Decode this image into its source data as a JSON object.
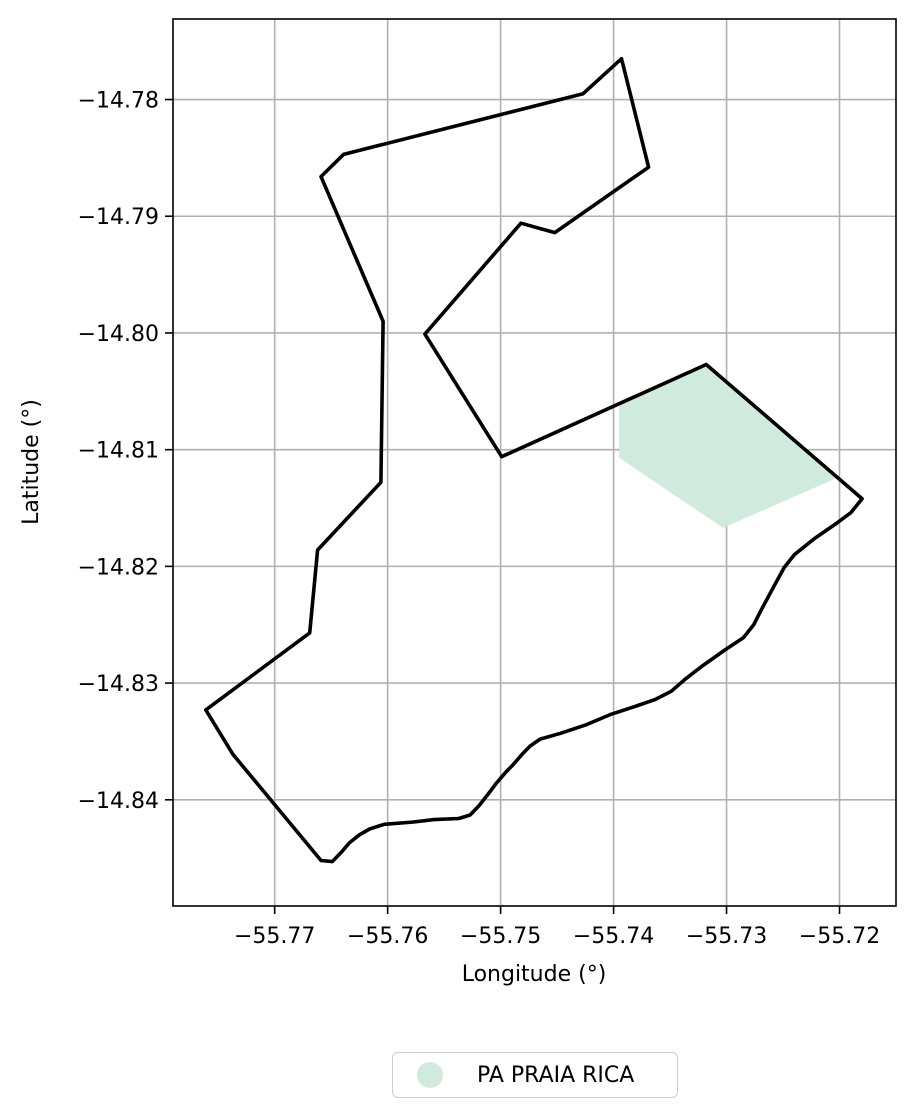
{
  "chart_data": {
    "type": "map",
    "xlabel": "Longitude (°)",
    "ylabel": "Latitude (°)",
    "xlim": [
      -55.779,
      -55.715
    ],
    "ylim": [
      -14.8491,
      -14.7731
    ],
    "grid": true,
    "x_ticks": [
      -55.77,
      -55.76,
      -55.75,
      -55.74,
      -55.73,
      -55.72
    ],
    "x_tick_labels": [
      "−55.77",
      "−55.76",
      "−55.75",
      "−55.74",
      "−55.73",
      "−55.72"
    ],
    "y_ticks": [
      -14.78,
      -14.79,
      -14.8,
      -14.81,
      -14.82,
      -14.83,
      -14.84
    ],
    "y_tick_labels": [
      "−14.78",
      "−14.79",
      "−14.80",
      "−14.81",
      "−14.82",
      "−14.83",
      "−14.84"
    ],
    "boundary": {
      "color": "#000000",
      "coords": [
        [
          -55.7393,
          -14.7765
        ],
        [
          -55.7427,
          -14.7795
        ],
        [
          -55.7639,
          -14.7847
        ],
        [
          -55.7659,
          -14.7866
        ],
        [
          -55.7604,
          -14.799
        ],
        [
          -55.7606,
          -14.8128
        ],
        [
          -55.7662,
          -14.8186
        ],
        [
          -55.7669,
          -14.8257
        ],
        [
          -55.7761,
          -14.8323
        ],
        [
          -55.7737,
          -14.8361
        ],
        [
          -55.7659,
          -14.8452
        ],
        [
          -55.7649,
          -14.8453
        ],
        [
          -55.7641,
          -14.8445
        ],
        [
          -55.7634,
          -14.8437
        ],
        [
          -55.7625,
          -14.843
        ],
        [
          -55.7616,
          -14.8425
        ],
        [
          -55.7603,
          -14.8421
        ],
        [
          -55.7577,
          -14.8419
        ],
        [
          -55.7559,
          -14.8417
        ],
        [
          -55.7537,
          -14.8416
        ],
        [
          -55.7527,
          -14.8413
        ],
        [
          -55.7519,
          -14.8405
        ],
        [
          -55.7511,
          -14.8395
        ],
        [
          -55.7504,
          -14.8386
        ],
        [
          -55.7496,
          -14.8377
        ],
        [
          -55.7489,
          -14.837
        ],
        [
          -55.7481,
          -14.8361
        ],
        [
          -55.7474,
          -14.8354
        ],
        [
          -55.7465,
          -14.8348
        ],
        [
          -55.7447,
          -14.8343
        ],
        [
          -55.7425,
          -14.8336
        ],
        [
          -55.7403,
          -14.8327
        ],
        [
          -55.7384,
          -14.8321
        ],
        [
          -55.7363,
          -14.8314
        ],
        [
          -55.7349,
          -14.8307
        ],
        [
          -55.7337,
          -14.8297
        ],
        [
          -55.7321,
          -14.8285
        ],
        [
          -55.7302,
          -14.8272
        ],
        [
          -55.7285,
          -14.8261
        ],
        [
          -55.7276,
          -14.825
        ],
        [
          -55.7268,
          -14.8235
        ],
        [
          -55.7258,
          -14.8217
        ],
        [
          -55.7249,
          -14.8201
        ],
        [
          -55.724,
          -14.819
        ],
        [
          -55.7222,
          -14.8176
        ],
        [
          -55.7204,
          -14.8164
        ],
        [
          -55.719,
          -14.8154
        ],
        [
          -55.718,
          -14.8142
        ],
        [
          -55.7318,
          -14.8027
        ],
        [
          -55.7499,
          -14.8106
        ],
        [
          -55.7567,
          -14.8001
        ],
        [
          -55.7482,
          -14.7906
        ],
        [
          -55.7452,
          -14.7914
        ],
        [
          -55.7369,
          -14.7858
        ],
        [
          -55.7393,
          -14.7765
        ]
      ]
    },
    "parcels": [
      {
        "name": "PA PRAIA RICA",
        "color": "#d0ebdd",
        "coords": [
          [
            -55.7395,
            -14.806
          ],
          [
            -55.7318,
            -14.8027
          ],
          [
            -55.7202,
            -14.8124
          ],
          [
            -55.7303,
            -14.8167
          ],
          [
            -55.7395,
            -14.8107
          ],
          [
            -55.7395,
            -14.806
          ]
        ]
      }
    ],
    "legend": {
      "placement": "bottom-center",
      "entries": [
        "PA PRAIA RICA"
      ]
    }
  }
}
